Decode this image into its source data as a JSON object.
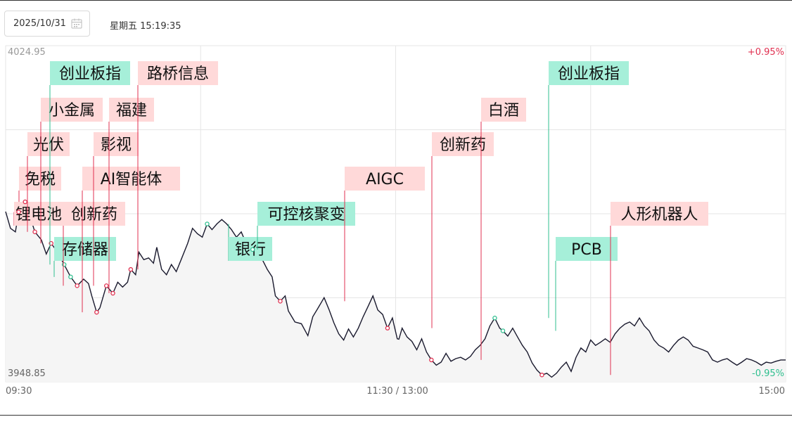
{
  "header": {
    "date_value": "2025/10/31",
    "calendar_icon": "calendar-icon",
    "timestamp": "星期五 15:19:35"
  },
  "colors": {
    "line": "#1a1a2e",
    "up": "#e03050",
    "up_bg": "#ffd9d9",
    "down": "#2fbf8f",
    "down_bg": "#a6efd9",
    "grid": "#e6e6e6",
    "area": "#f5f5f5",
    "axis_text": "#999999"
  },
  "chart_data": {
    "type": "line",
    "title": "",
    "xlabel": "",
    "ylabel": "",
    "ylim": [
      3948.85,
      4024.95
    ],
    "y_top_label": "4024.95",
    "y_bottom_label": "3948.85",
    "y_pct_top": "+0.95%",
    "y_pct_bottom": "-0.95%",
    "x_tick_labels": [
      "09:30",
      "11:30 / 13:00",
      "15:00"
    ],
    "x_range_minutes": [
      0,
      240
    ],
    "grid": true,
    "series": [
      {
        "points": [
          [
            0.0,
            3987.4
          ],
          [
            1.5,
            3983.6
          ],
          [
            3.0,
            3982.8
          ],
          [
            4.0,
            3987.3
          ],
          [
            6.0,
            3989.6
          ],
          [
            7.5,
            3986.3
          ],
          [
            9.0,
            3982.8
          ],
          [
            11.0,
            3981.0
          ],
          [
            12.5,
            3977.8
          ],
          [
            14.0,
            3980.2
          ],
          [
            16.0,
            3978.2
          ],
          [
            18.0,
            3975.4
          ],
          [
            20.0,
            3972.6
          ],
          [
            22.0,
            3970.6
          ],
          [
            24.0,
            3972.1
          ],
          [
            25.5,
            3971.1
          ],
          [
            26.5,
            3968.3
          ],
          [
            28.0,
            3964.6
          ],
          [
            29.0,
            3965.6
          ],
          [
            31.0,
            3970.6
          ],
          [
            33.0,
            3968.9
          ],
          [
            34.5,
            3971.4
          ],
          [
            36.0,
            3970.3
          ],
          [
            37.5,
            3971.4
          ],
          [
            38.5,
            3974.3
          ],
          [
            40.0,
            3973.1
          ],
          [
            41.0,
            3978.2
          ],
          [
            42.5,
            3976.5
          ],
          [
            44.0,
            3976.9
          ],
          [
            45.5,
            3975.7
          ],
          [
            46.5,
            3979.3
          ],
          [
            48.0,
            3974.3
          ],
          [
            49.5,
            3973.1
          ],
          [
            51.0,
            3975.4
          ],
          [
            52.5,
            3973.8
          ],
          [
            54.0,
            3976.5
          ],
          [
            56.0,
            3980.2
          ],
          [
            57.5,
            3983.6
          ],
          [
            59.0,
            3982.4
          ],
          [
            60.5,
            3981.6
          ],
          [
            62.0,
            3984.6
          ],
          [
            63.5,
            3983.3
          ],
          [
            65.0,
            3984.6
          ],
          [
            66.5,
            3985.6
          ],
          [
            68.0,
            3984.6
          ],
          [
            69.5,
            3983.3
          ],
          [
            71.0,
            3981.6
          ],
          [
            72.5,
            3982.8
          ],
          [
            74.0,
            3980.2
          ],
          [
            76.0,
            3978.8
          ],
          [
            77.5,
            3977.8
          ],
          [
            79.0,
            3976.5
          ],
          [
            80.5,
            3974.3
          ],
          [
            82.0,
            3972.6
          ],
          [
            83.0,
            3968.3
          ],
          [
            84.5,
            3967.1
          ],
          [
            86.0,
            3968.3
          ],
          [
            87.0,
            3964.9
          ],
          [
            89.0,
            3962.4
          ],
          [
            91.0,
            3962.0
          ],
          [
            93.0,
            3959.3
          ],
          [
            94.5,
            3963.6
          ],
          [
            96.0,
            3965.4
          ],
          [
            98.0,
            3967.9
          ],
          [
            99.5,
            3965.2
          ],
          [
            101.0,
            3962.2
          ],
          [
            102.5,
            3959.7
          ],
          [
            104.0,
            3958.3
          ],
          [
            105.5,
            3960.8
          ],
          [
            107.0,
            3959.0
          ],
          [
            108.5,
            3961.0
          ],
          [
            110.0,
            3963.6
          ],
          [
            111.5,
            3965.9
          ],
          [
            113.0,
            3968.3
          ],
          [
            114.5,
            3965.1
          ],
          [
            116.0,
            3964.1
          ],
          [
            117.5,
            3961.0
          ],
          [
            119.0,
            3963.3
          ],
          [
            120.5,
            3958.6
          ],
          [
            121.0,
            3958.5
          ],
          [
            122.0,
            3961.0
          ],
          [
            123.5,
            3959.0
          ],
          [
            125.0,
            3958.0
          ],
          [
            126.5,
            3956.1
          ],
          [
            128.0,
            3958.6
          ],
          [
            129.5,
            3955.6
          ],
          [
            131.0,
            3953.8
          ],
          [
            132.5,
            3952.6
          ],
          [
            134.0,
            3953.3
          ],
          [
            135.5,
            3955.3
          ],
          [
            137.0,
            3953.5
          ],
          [
            138.5,
            3954.1
          ],
          [
            140.0,
            3954.4
          ],
          [
            141.5,
            3953.8
          ],
          [
            143.0,
            3954.6
          ],
          [
            144.5,
            3956.1
          ],
          [
            146.0,
            3957.1
          ],
          [
            147.5,
            3958.6
          ],
          [
            149.0,
            3961.5
          ],
          [
            150.5,
            3963.3
          ],
          [
            152.0,
            3961.0
          ],
          [
            153.0,
            3960.4
          ],
          [
            154.5,
            3959.2
          ],
          [
            156.0,
            3961.0
          ],
          [
            157.5,
            3959.0
          ],
          [
            159.0,
            3957.1
          ],
          [
            160.5,
            3955.6
          ],
          [
            162.0,
            3953.1
          ],
          [
            163.5,
            3951.5
          ],
          [
            165.0,
            3950.4
          ],
          [
            166.5,
            3950.8
          ],
          [
            168.0,
            3949.9
          ],
          [
            169.5,
            3950.8
          ],
          [
            171.0,
            3952.2
          ],
          [
            172.5,
            3953.3
          ],
          [
            174.0,
            3951.2
          ],
          [
            175.5,
            3954.4
          ],
          [
            177.0,
            3956.5
          ],
          [
            178.5,
            3955.6
          ],
          [
            180.0,
            3958.3
          ],
          [
            181.5,
            3957.1
          ],
          [
            183.0,
            3957.8
          ],
          [
            184.5,
            3958.6
          ],
          [
            186.0,
            3957.8
          ],
          [
            187.5,
            3959.7
          ],
          [
            189.0,
            3961.0
          ],
          [
            190.5,
            3961.9
          ],
          [
            192.0,
            3962.4
          ],
          [
            193.5,
            3961.5
          ],
          [
            195.0,
            3963.3
          ],
          [
            196.5,
            3961.5
          ],
          [
            198.0,
            3960.4
          ],
          [
            199.5,
            3958.3
          ],
          [
            201.0,
            3957.1
          ],
          [
            202.5,
            3956.5
          ],
          [
            204.0,
            3955.6
          ],
          [
            205.5,
            3957.1
          ],
          [
            207.0,
            3958.3
          ],
          [
            208.5,
            3959.0
          ],
          [
            210.0,
            3958.3
          ],
          [
            211.5,
            3956.9
          ],
          [
            213.0,
            3956.5
          ],
          [
            214.5,
            3956.1
          ],
          [
            216.0,
            3955.6
          ],
          [
            217.5,
            3953.8
          ],
          [
            219.0,
            3953.3
          ],
          [
            220.5,
            3953.8
          ],
          [
            222.0,
            3954.1
          ],
          [
            223.5,
            3953.3
          ],
          [
            225.0,
            3952.6
          ],
          [
            226.5,
            3953.3
          ],
          [
            228.0,
            3954.1
          ],
          [
            229.5,
            3953.8
          ],
          [
            231.0,
            3953.3
          ],
          [
            232.5,
            3952.6
          ],
          [
            234.0,
            3953.3
          ],
          [
            235.5,
            3953.1
          ],
          [
            237.0,
            3953.5
          ],
          [
            238.5,
            3953.8
          ],
          [
            240.0,
            3953.8
          ]
        ]
      }
    ],
    "annotations": [
      {
        "text": "锂电池",
        "t": 4.0,
        "y": 3987.3,
        "dir": "up"
      },
      {
        "text": "免税",
        "t": 6.0,
        "y": 3989.6,
        "dir": "up"
      },
      {
        "text": "光伏",
        "t": 9.0,
        "y": 3982.8,
        "dir": "up"
      },
      {
        "text": "小金属",
        "t": 14.0,
        "y": 3980.2,
        "dir": "up"
      },
      {
        "text": "创业板指",
        "t": 18.0,
        "y": 3975.4,
        "dir": "down"
      },
      {
        "text": "存储器",
        "t": 20.0,
        "y": 3972.6,
        "dir": "down"
      },
      {
        "text": "创新药",
        "t": 22.0,
        "y": 3970.6,
        "dir": "up"
      },
      {
        "text": "AI智能体",
        "t": 28.0,
        "y": 3964.6,
        "dir": "up"
      },
      {
        "text": "影视",
        "t": 31.0,
        "y": 3970.6,
        "dir": "up"
      },
      {
        "text": "福建",
        "t": 33.0,
        "y": 3968.9,
        "dir": "up"
      },
      {
        "text": "路桥信息",
        "t": 38.5,
        "y": 3974.3,
        "dir": "up"
      },
      {
        "text": "银行",
        "t": 62.0,
        "y": 3984.6,
        "dir": "down"
      },
      {
        "text": "可控核聚变",
        "t": 76.0,
        "y": 3978.8,
        "dir": "down"
      },
      {
        "text": "AIGC",
        "t": 84.5,
        "y": 3967.1,
        "dir": "up"
      },
      {
        "text": "创新药",
        "t": 117.5,
        "y": 3961.0,
        "dir": "up"
      },
      {
        "text": "白酒",
        "t": 131.0,
        "y": 3953.8,
        "dir": "up"
      },
      {
        "text": "创业板指",
        "t": 150.5,
        "y": 3963.3,
        "dir": "down"
      },
      {
        "text": "PCB",
        "t": 153.0,
        "y": 3960.4,
        "dir": "down"
      },
      {
        "text": "人形机器人",
        "t": 165.0,
        "y": 3950.4,
        "dir": "up"
      }
    ]
  }
}
